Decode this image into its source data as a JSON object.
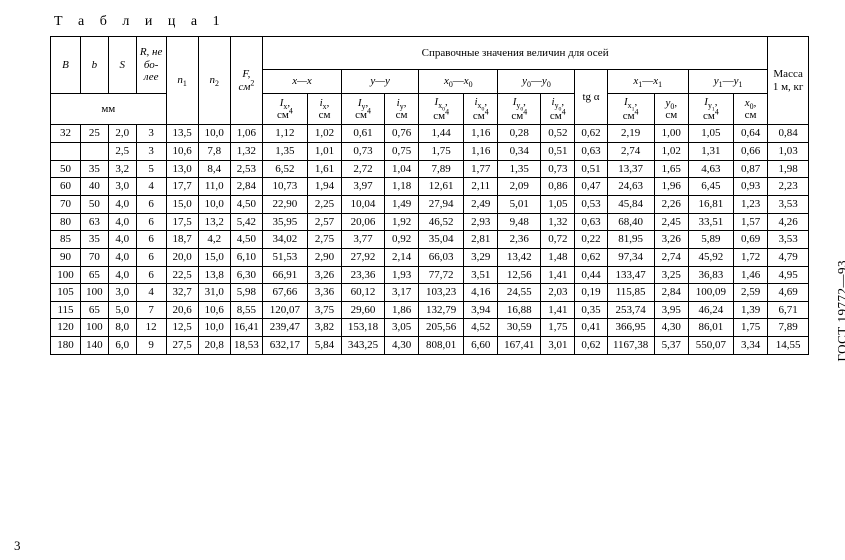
{
  "title": "Т а б л и ц а 1",
  "side_label": "ГОСТ 19772—93",
  "page_number": "3",
  "header": {
    "B": "B",
    "b": "b",
    "S": "S",
    "R": "R, не бо­лее",
    "mm": "мм",
    "n1": "n",
    "n2": "n",
    "F": "F, см",
    "ref": "Справочные значения величин для осей",
    "mass": "Масса 1 м, кг",
    "xx": "x—x",
    "yy": "y—y",
    "x0x0": "x",
    "y0y0": "y",
    "x1x1": "x",
    "y1y1": "y",
    "Ix": "I",
    "ix": "i",
    "Iy": "I",
    "iy": "i",
    "Ix0": "I",
    "ix0": "i",
    "Iy0": "I",
    "iy0": "i",
    "tga": "tg α",
    "Ix1": "I",
    "y0v": "y",
    "Iy1": "I",
    "x0v": "x",
    "cm4": "см",
    "cm": "см"
  },
  "rows": [
    [
      "32",
      "25",
      "2,0",
      "3",
      "13,5",
      "10,0",
      "1,06",
      "1,12",
      "1,02",
      "0,61",
      "0,76",
      "1,44",
      "1,16",
      "0,28",
      "0,52",
      "0,62",
      "2,19",
      "1,00",
      "1,05",
      "0,64",
      "0,84"
    ],
    [
      "",
      "",
      "2,5",
      "3",
      "10,6",
      "7,8",
      "1,32",
      "1,35",
      "1,01",
      "0,73",
      "0,75",
      "1,75",
      "1,16",
      "0,34",
      "0,51",
      "0,63",
      "2,74",
      "1,02",
      "1,31",
      "0,66",
      "1,03"
    ],
    [
      "50",
      "35",
      "3,2",
      "5",
      "13,0",
      "8,4",
      "2,53",
      "6,52",
      "1,61",
      "2,72",
      "1,04",
      "7,89",
      "1,77",
      "1,35",
      "0,73",
      "0,51",
      "13,37",
      "1,65",
      "4,63",
      "0,87",
      "1,98"
    ],
    [
      "60",
      "40",
      "3,0",
      "4",
      "17,7",
      "11,0",
      "2,84",
      "10,73",
      "1,94",
      "3,97",
      "1,18",
      "12,61",
      "2,11",
      "2,09",
      "0,86",
      "0,47",
      "24,63",
      "1,96",
      "6,45",
      "0,93",
      "2,23"
    ],
    [
      "70",
      "50",
      "4,0",
      "6",
      "15,0",
      "10,0",
      "4,50",
      "22,90",
      "2,25",
      "10,04",
      "1,49",
      "27,94",
      "2,49",
      "5,01",
      "1,05",
      "0,53",
      "45,84",
      "2,26",
      "16,81",
      "1,23",
      "3,53"
    ],
    [
      "80",
      "63",
      "4,0",
      "6",
      "17,5",
      "13,2",
      "5,42",
      "35,95",
      "2,57",
      "20,06",
      "1,92",
      "46,52",
      "2,93",
      "9,48",
      "1,32",
      "0,63",
      "68,40",
      "2,45",
      "33,51",
      "1,57",
      "4,26"
    ],
    [
      "85",
      "35",
      "4,0",
      "6",
      "18,7",
      "4,2",
      "4,50",
      "34,02",
      "2,75",
      "3,77",
      "0,92",
      "35,04",
      "2,81",
      "2,36",
      "0,72",
      "0,22",
      "81,95",
      "3,26",
      "5,89",
      "0,69",
      "3,53"
    ],
    [
      "90",
      "70",
      "4,0",
      "6",
      "20,0",
      "15,0",
      "6,10",
      "51,53",
      "2,90",
      "27,92",
      "2,14",
      "66,03",
      "3,29",
      "13,42",
      "1,48",
      "0,62",
      "97,34",
      "2,74",
      "45,92",
      "1,72",
      "4,79"
    ],
    [
      "100",
      "65",
      "4,0",
      "6",
      "22,5",
      "13,8",
      "6,30",
      "66,91",
      "3,26",
      "23,36",
      "1,93",
      "77,72",
      "3,51",
      "12,56",
      "1,41",
      "0,44",
      "133,47",
      "3,25",
      "36,83",
      "1,46",
      "4,95"
    ],
    [
      "105",
      "100",
      "3,0",
      "4",
      "32,7",
      "31,0",
      "5,98",
      "67,66",
      "3,36",
      "60,12",
      "3,17",
      "103,23",
      "4,16",
      "24,55",
      "2,03",
      "0,19",
      "115,85",
      "2,84",
      "100,09",
      "2,59",
      "4,69"
    ],
    [
      "115",
      "65",
      "5,0",
      "7",
      "20,6",
      "10,6",
      "8,55",
      "120,07",
      "3,75",
      "29,60",
      "1,86",
      "132,79",
      "3,94",
      "16,88",
      "1,41",
      "0,35",
      "253,74",
      "3,95",
      "46,24",
      "1,39",
      "6,71"
    ],
    [
      "120",
      "100",
      "8,0",
      "12",
      "12,5",
      "10,0",
      "16,41",
      "239,47",
      "3,82",
      "153,18",
      "3,05",
      "205,56",
      "4,52",
      "30,59",
      "1,75",
      "0,41",
      "366,95",
      "4,30",
      "86,01",
      "1,75",
      "7,89"
    ],
    [
      "180",
      "140",
      "6,0",
      "9",
      "27,5",
      "20,8",
      "18,53",
      "632,17",
      "5,84",
      "343,25",
      "4,30",
      "808,01",
      "6,60",
      "167,41",
      "3,01",
      "0,62",
      "1167,38",
      "5,37",
      "550,07",
      "3,34",
      "14,55"
    ]
  ]
}
